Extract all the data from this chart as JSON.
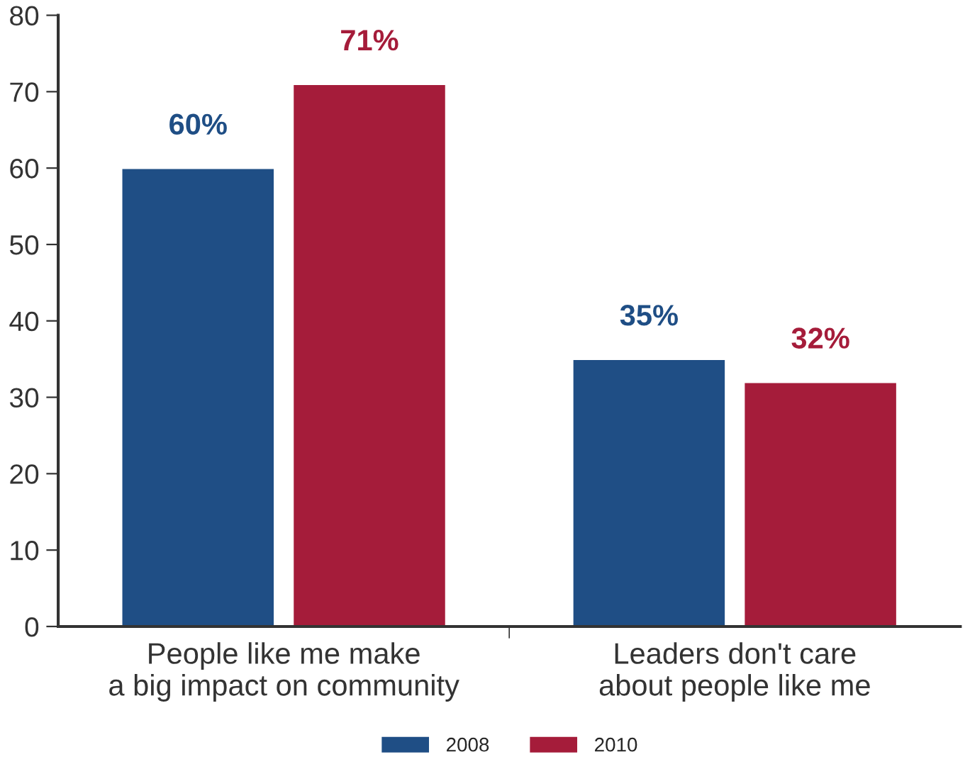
{
  "chart_data": {
    "type": "bar",
    "categories": [
      "People like me make\na big impact on community",
      "Leaders don't care\nabout people like me"
    ],
    "series": [
      {
        "name": "2008",
        "color": "#1f4e85",
        "values": [
          60,
          35
        ],
        "value_labels": [
          "60%",
          "35%"
        ]
      },
      {
        "name": "2010",
        "color": "#a51c3a",
        "values": [
          71,
          32
        ],
        "value_labels": [
          "71%",
          "32%"
        ]
      }
    ],
    "ylim": [
      0,
      80
    ],
    "yticks": [
      0,
      10,
      20,
      30,
      40,
      50,
      60,
      70,
      80
    ],
    "grid": false,
    "legend": "bottom"
  }
}
